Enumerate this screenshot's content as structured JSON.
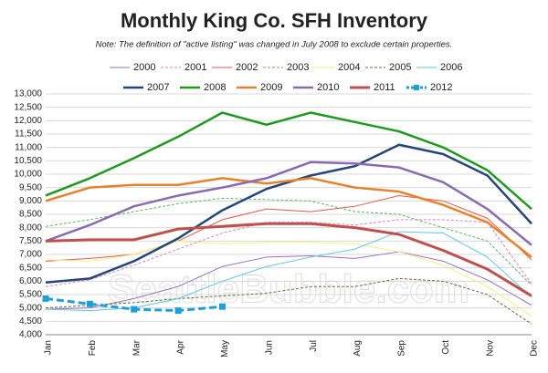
{
  "chart_data": {
    "type": "line",
    "title": "Monthly King Co. SFH Inventory",
    "subtitle": "Note: The definition of \"active listing\" was changed in July 2008 to exclude certain properties.",
    "watermark": "SeattleBubble.com",
    "categories": [
      "Jan",
      "Feb",
      "Mar",
      "Apr",
      "May",
      "Jun",
      "Jul",
      "Aug",
      "Sep",
      "Oct",
      "Nov",
      "Dec"
    ],
    "ylim": [
      4000,
      13000
    ],
    "yticks": [
      {
        "value": 4000,
        "label": "4,000"
      },
      {
        "value": 4500,
        "label": "4,500"
      },
      {
        "value": 5000,
        "label": "5,000"
      },
      {
        "value": 5500,
        "label": "5,500"
      },
      {
        "value": 6000,
        "label": "6,000"
      },
      {
        "value": 6500,
        "label": "6,500"
      },
      {
        "value": 7000,
        "label": "7,000"
      },
      {
        "value": 7500,
        "label": "7,500"
      },
      {
        "value": 8000,
        "label": "8,000"
      },
      {
        "value": 8500,
        "label": "8,500"
      },
      {
        "value": 9000,
        "label": "9,000"
      },
      {
        "value": 9500,
        "label": "9,500"
      },
      {
        "value": 10000,
        "label": "10,000"
      },
      {
        "value": 10500,
        "label": "10,500"
      },
      {
        "value": 11000,
        "label": "11,000"
      },
      {
        "value": 11500,
        "label": "11,500"
      },
      {
        "value": 12000,
        "label": "12,000"
      },
      {
        "value": 12500,
        "label": "12,500"
      },
      {
        "value": 13000,
        "label": "13,000"
      }
    ],
    "grid": true,
    "series": [
      {
        "name": "2000",
        "color": "#9b6fbf",
        "width": 1,
        "dash": false,
        "values": [
          4950,
          5000,
          5350,
          5800,
          6550,
          6900,
          6950,
          6850,
          7100,
          6750,
          6050,
          5100
        ]
      },
      {
        "name": "2001",
        "color": "#e87fb8",
        "width": 1,
        "dash": true,
        "values": [
          5800,
          6050,
          6600,
          7200,
          7800,
          8200,
          8200,
          8100,
          8300,
          8300,
          8200,
          5900
        ]
      },
      {
        "name": "2002",
        "color": "#e8564f",
        "width": 1,
        "dash": false,
        "values": [
          6750,
          6850,
          7000,
          7500,
          8300,
          8700,
          8600,
          8800,
          9200,
          9000,
          8350,
          6800
        ]
      },
      {
        "name": "2003",
        "color": "#5cb85c",
        "width": 1,
        "dash": true,
        "values": [
          8050,
          8300,
          8600,
          8900,
          9100,
          9050,
          9000,
          8600,
          8500,
          8000,
          7500,
          5850
        ]
      },
      {
        "name": "2004",
        "color": "#f2f27a",
        "width": 1,
        "dash": false,
        "values": [
          6800,
          6750,
          7000,
          7500,
          7400,
          7450,
          7450,
          7400,
          7100,
          6600,
          5800,
          4700
        ]
      },
      {
        "name": "2005",
        "color": "#6b6b3a",
        "width": 1,
        "dash": true,
        "values": [
          5000,
          5100,
          5200,
          5350,
          5450,
          5550,
          5800,
          5800,
          6100,
          6000,
          5500,
          4400
        ]
      },
      {
        "name": "2006",
        "color": "#5bc8e8",
        "width": 1,
        "dash": false,
        "values": [
          4950,
          4900,
          5000,
          5350,
          6000,
          6550,
          6900,
          7200,
          7850,
          7800,
          6900,
          5400
        ]
      },
      {
        "name": "2007",
        "color": "#24477a",
        "width": 2.5,
        "dash": false,
        "values": [
          5950,
          6100,
          6750,
          7600,
          8650,
          9450,
          9950,
          10300,
          11100,
          10750,
          9950,
          8150
        ]
      },
      {
        "name": "2008",
        "color": "#1f9a1f",
        "width": 2.5,
        "dash": false,
        "values": [
          9200,
          9850,
          10600,
          11400,
          12300,
          11850,
          12300,
          11950,
          11600,
          11000,
          10150,
          8700
        ]
      },
      {
        "name": "2009",
        "color": "#e8822a",
        "width": 2.5,
        "dash": false,
        "values": [
          9000,
          9500,
          9600,
          9600,
          9850,
          9650,
          9850,
          9500,
          9350,
          8850,
          8200,
          6900
        ]
      },
      {
        "name": "2010",
        "color": "#8a6bb0",
        "width": 2.5,
        "dash": false,
        "values": [
          7500,
          8100,
          8800,
          9200,
          9500,
          9850,
          10450,
          10400,
          10250,
          9700,
          8700,
          7350
        ]
      },
      {
        "name": "2011",
        "color": "#c0504d",
        "width": 3,
        "dash": false,
        "values": [
          7500,
          7550,
          7550,
          7950,
          8050,
          8150,
          8150,
          8000,
          7750,
          7150,
          6450,
          5450
        ]
      },
      {
        "name": "2012",
        "color": "#1e9fd8",
        "width": 3,
        "dash": true,
        "marker": "square",
        "values": [
          5350,
          5150,
          4950,
          4900,
          5050,
          null,
          null,
          null,
          null,
          null,
          null,
          null
        ]
      }
    ]
  }
}
